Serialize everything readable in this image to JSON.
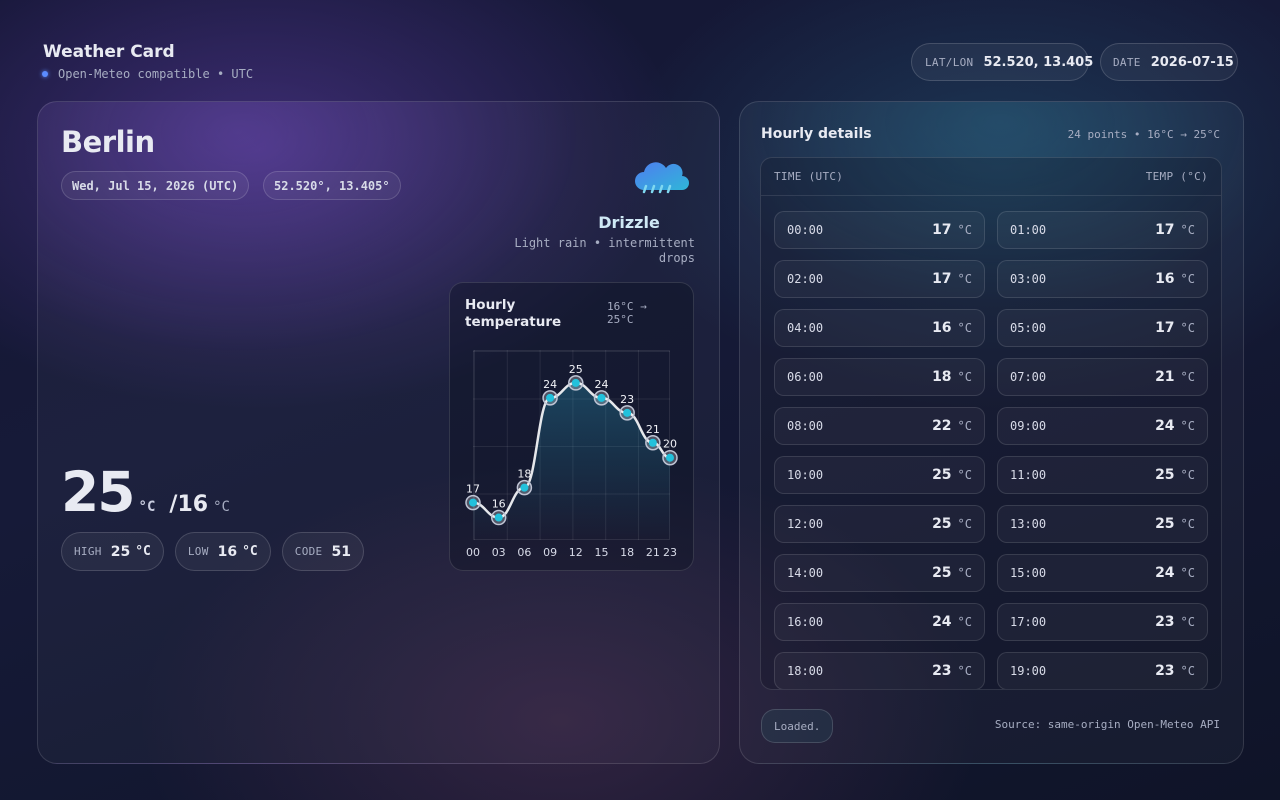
{
  "header": {
    "title": "Weather Card",
    "subtitle": "Open-Meteo compatible • UTC",
    "lat_lon": {
      "label": "LAT/LON",
      "value": "52.520, 13.405"
    },
    "date": {
      "label": "DATE",
      "value": "2026-07-15"
    }
  },
  "current": {
    "city": "Berlin",
    "date": "Wed, Jul 15, 2026 (UTC)",
    "coords": "52.520°, 13.405°",
    "condition": "Drizzle",
    "description": "Light rain • intermittent drops",
    "temperature": 25,
    "unit": "°C",
    "separator": "/",
    "low": 16,
    "stats": [
      {
        "label": "HIGH",
        "value": 25,
        "unit": "°C"
      },
      {
        "label": "LOW",
        "value": 16,
        "unit": "°C"
      },
      {
        "label": "CODE",
        "value": 51
      }
    ]
  },
  "chart_data": {
    "type": "line",
    "title": "Hourly temperature",
    "range": "16°C → 25°C",
    "x": [
      0,
      3,
      6,
      9,
      12,
      15,
      18,
      21,
      23
    ],
    "values": [
      17,
      16,
      18,
      24,
      25,
      24,
      23,
      21,
      20
    ],
    "xlim": [
      0,
      23
    ],
    "ylim": [
      14.5,
      27.2
    ],
    "xticks": [
      {
        "value": 0,
        "label": "00"
      },
      {
        "value": 3,
        "label": "03"
      },
      {
        "value": 6,
        "label": "06"
      },
      {
        "value": 9,
        "label": "09"
      },
      {
        "value": 12,
        "label": "12"
      },
      {
        "value": 15,
        "label": "15"
      },
      {
        "value": 18,
        "label": "18"
      },
      {
        "value": 21,
        "label": "21"
      },
      {
        "value": 23,
        "label": "23"
      }
    ],
    "color": "#e5e7eb",
    "marker_color": "#22c1dc",
    "grid": true
  },
  "hourly": {
    "title": "Hourly details",
    "summary": "24 points • 16°C → 25°C",
    "columns": [
      "TIME (UTC)",
      "TEMP (°C)"
    ],
    "unit": "°C",
    "rows": [
      {
        "time": "00:00",
        "temp": 17
      },
      {
        "time": "01:00",
        "temp": 17
      },
      {
        "time": "02:00",
        "temp": 17
      },
      {
        "time": "03:00",
        "temp": 16
      },
      {
        "time": "04:00",
        "temp": 16
      },
      {
        "time": "05:00",
        "temp": 17
      },
      {
        "time": "06:00",
        "temp": 18
      },
      {
        "time": "07:00",
        "temp": 21
      },
      {
        "time": "08:00",
        "temp": 22
      },
      {
        "time": "09:00",
        "temp": 24
      },
      {
        "time": "10:00",
        "temp": 25
      },
      {
        "time": "11:00",
        "temp": 25
      },
      {
        "time": "12:00",
        "temp": 25
      },
      {
        "time": "13:00",
        "temp": 25
      },
      {
        "time": "14:00",
        "temp": 25
      },
      {
        "time": "15:00",
        "temp": 24
      },
      {
        "time": "16:00",
        "temp": 24
      },
      {
        "time": "17:00",
        "temp": 23
      },
      {
        "time": "18:00",
        "temp": 23
      },
      {
        "time": "19:00",
        "temp": 23
      }
    ]
  },
  "footer": {
    "status": "Loaded.",
    "source": "Source: same-origin Open-Meteo API"
  }
}
